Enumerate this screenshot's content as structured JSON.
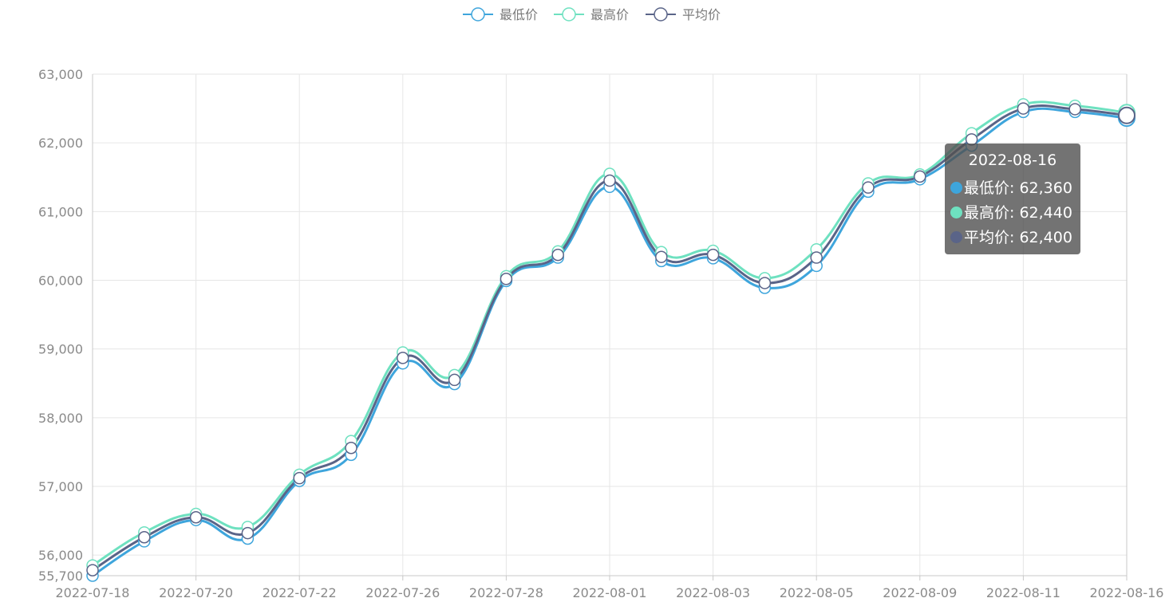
{
  "legend": [
    {
      "name": "最低价",
      "color": "#3ea5dc"
    },
    {
      "name": "最高价",
      "color": "#6ee1c0"
    },
    {
      "name": "平均价",
      "color": "#5a6488"
    }
  ],
  "tooltip": {
    "date": "2022-08-16",
    "rows": [
      {
        "label": "最低价",
        "value": "62,360",
        "color": "#3ea5dc"
      },
      {
        "label": "最高价",
        "value": "62,440",
        "color": "#6ee1c0"
      },
      {
        "label": "平均价",
        "value": "62,400",
        "color": "#5a6488"
      }
    ]
  },
  "chart_data": {
    "type": "line",
    "smooth": true,
    "grid": true,
    "legend_position": "top-center",
    "ylim": [
      55700,
      63000
    ],
    "y_ticks": [
      {
        "value": 55700,
        "label": "55,700"
      },
      {
        "value": 56000,
        "label": "56,000"
      },
      {
        "value": 57000,
        "label": "57,000"
      },
      {
        "value": 58000,
        "label": "58,000"
      },
      {
        "value": 59000,
        "label": "59,000"
      },
      {
        "value": 60000,
        "label": "60,000"
      },
      {
        "value": 61000,
        "label": "61,000"
      },
      {
        "value": 62000,
        "label": "62,000"
      },
      {
        "value": 63000,
        "label": "63,000"
      }
    ],
    "x_tick_labels": [
      "2022-07-18",
      "2022-07-20",
      "2022-07-22",
      "2022-07-26",
      "2022-07-28",
      "2022-08-01",
      "2022-08-03",
      "2022-08-05",
      "2022-08-09",
      "2022-08-11",
      "2022-08-16"
    ],
    "highlighted_index": 20,
    "series": [
      {
        "name": "最低价",
        "color": "#3ea5dc",
        "values": [
          55700,
          56200,
          56510,
          56240,
          57080,
          57460,
          58790,
          58490,
          59990,
          60330,
          61360,
          60280,
          60320,
          59890,
          60210,
          61290,
          61470,
          61960,
          62450,
          62450,
          62360
        ]
      },
      {
        "name": "最高价",
        "color": "#6ee1c0",
        "values": [
          55850,
          56330,
          56600,
          56410,
          57170,
          57660,
          58950,
          58620,
          60060,
          60420,
          61550,
          60410,
          60430,
          60030,
          60450,
          61410,
          61540,
          62140,
          62560,
          62540,
          62440
        ]
      },
      {
        "name": "平均价",
        "color": "#5a6488",
        "values": [
          55780,
          56260,
          56550,
          56320,
          57120,
          57560,
          58870,
          58550,
          60020,
          60370,
          61450,
          60340,
          60370,
          59960,
          60330,
          61350,
          61510,
          62050,
          62500,
          62490,
          62400
        ]
      }
    ]
  }
}
